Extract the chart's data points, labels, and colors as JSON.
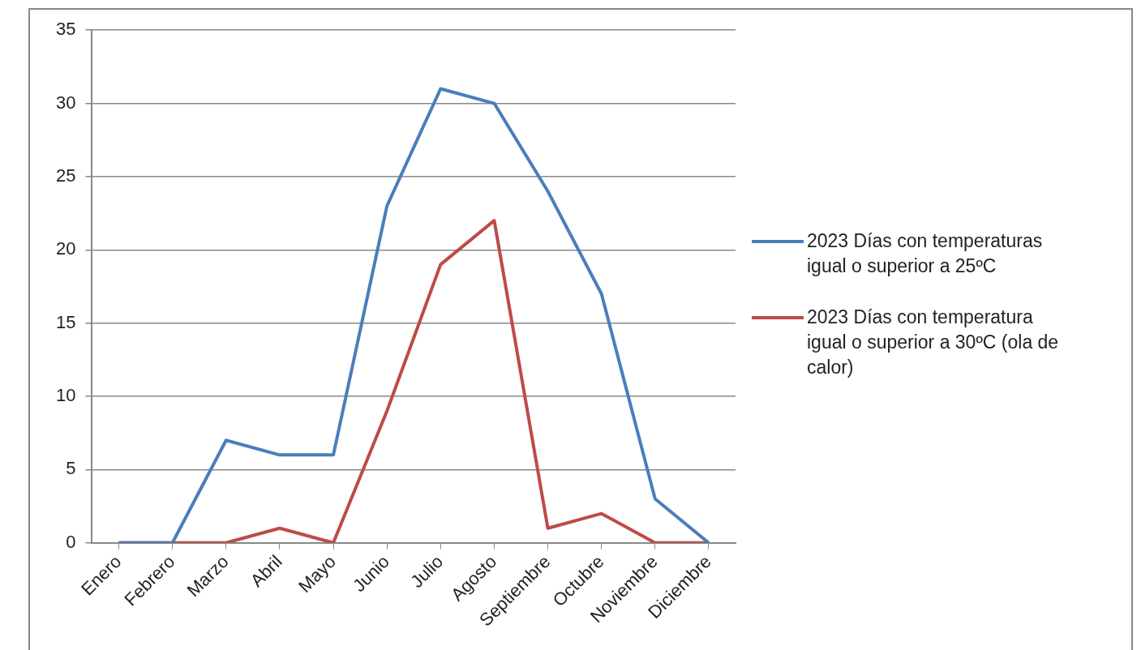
{
  "chart_data": {
    "type": "line",
    "categories": [
      "Enero",
      "Febrero",
      "Marzo",
      "Abril",
      "Mayo",
      "Junio",
      "Julio",
      "Agosto",
      "Septiembre",
      "Octubre",
      "Noviembre",
      "Diciembre"
    ],
    "series": [
      {
        "name": "2023 Días con temperaturas igual o superior a 25ºC",
        "color": "#4a7ebb",
        "values": [
          0,
          0,
          7,
          6,
          6,
          23,
          31,
          30,
          24,
          17,
          3,
          0
        ]
      },
      {
        "name": "2023 Días con temperatura igual o superior a 30ºC (ola de calor)",
        "color": "#be4b48",
        "values": [
          0,
          0,
          0,
          1,
          0,
          9,
          19,
          22,
          1,
          2,
          0,
          0
        ]
      }
    ],
    "ylim": [
      0,
      35
    ],
    "yticks": [
      0,
      5,
      10,
      15,
      20,
      25,
      30,
      35
    ],
    "grid": "y",
    "legend": "right",
    "marker": "none",
    "line_style": "solid"
  }
}
